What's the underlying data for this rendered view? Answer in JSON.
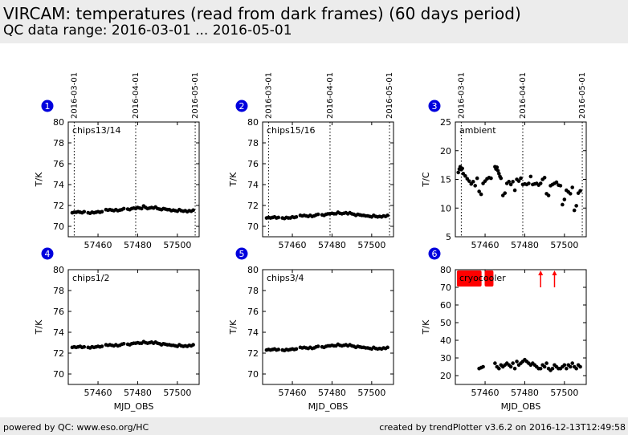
{
  "header": {
    "title": "VIRCAM: temperatures (read from dark frames) (60 days period)",
    "subtitle": "QC data range: 2016-03-01 ... 2016-05-01"
  },
  "footer": {
    "left": "powered by QC: www.eso.org/HC",
    "right": "created by trendPlotter v3.6.2 on 2016-12-13T12:49:58"
  },
  "chart_data": [
    {
      "type": "scatter",
      "panel_number": "1",
      "label": "chips13/14",
      "ylabel": "T/K",
      "xlabel": "",
      "xlim": [
        57445,
        57511
      ],
      "ylim": [
        69,
        80
      ],
      "xticks": [
        57460,
        57480,
        57500
      ],
      "yticks": [
        70,
        72,
        74,
        76,
        78,
        80
      ],
      "date_ticks": [
        {
          "x": 57448,
          "label": "2016-03-01"
        },
        {
          "x": 57479,
          "label": "2016-04-01"
        },
        {
          "x": 57509,
          "label": "2016-05-01"
        }
      ],
      "series": [
        {
          "color": "#000000",
          "x": [
            57447,
            57448,
            57449,
            57450,
            57451,
            57452,
            57453,
            57455,
            57456,
            57457,
            57458,
            57459,
            57460,
            57461,
            57462,
            57464,
            57465,
            57466,
            57467,
            57468,
            57469,
            57470,
            57471,
            57472,
            57473,
            57475,
            57476,
            57477,
            57478,
            57479,
            57480,
            57481,
            57482,
            57483,
            57484,
            57485,
            57486,
            57487,
            57488,
            57489,
            57490,
            57491,
            57492,
            57493,
            57494,
            57495,
            57496,
            57497,
            57498,
            57499,
            57500,
            57501,
            57502,
            57503,
            57504,
            57505,
            57506,
            57507,
            57508
          ],
          "y": [
            71.3,
            71.35,
            71.35,
            71.4,
            71.35,
            71.3,
            71.4,
            71.3,
            71.25,
            71.35,
            71.3,
            71.35,
            71.4,
            71.35,
            71.4,
            71.6,
            71.55,
            71.6,
            71.55,
            71.5,
            71.6,
            71.5,
            71.55,
            71.6,
            71.7,
            71.65,
            71.6,
            71.7,
            71.75,
            71.7,
            71.8,
            71.75,
            71.7,
            71.95,
            71.8,
            71.7,
            71.75,
            71.8,
            71.75,
            71.85,
            71.7,
            71.65,
            71.6,
            71.7,
            71.65,
            71.6,
            71.6,
            71.5,
            71.55,
            71.5,
            71.45,
            71.6,
            71.5,
            71.45,
            71.5,
            71.4,
            71.5,
            71.45,
            71.55
          ]
        }
      ]
    },
    {
      "type": "scatter",
      "panel_number": "2",
      "label": "chips15/16",
      "ylabel": "T/K",
      "xlabel": "",
      "xlim": [
        57445,
        57511
      ],
      "ylim": [
        69,
        80
      ],
      "xticks": [
        57460,
        57480,
        57500
      ],
      "yticks": [
        70,
        72,
        74,
        76,
        78,
        80
      ],
      "date_ticks": [
        {
          "x": 57448,
          "label": "2016-03-01"
        },
        {
          "x": 57479,
          "label": "2016-04-01"
        },
        {
          "x": 57509,
          "label": "2016-05-01"
        }
      ],
      "series": [
        {
          "color": "#000000",
          "x": [
            57447,
            57448,
            57449,
            57450,
            57451,
            57452,
            57453,
            57455,
            57456,
            57457,
            57458,
            57459,
            57460,
            57461,
            57462,
            57464,
            57465,
            57466,
            57467,
            57468,
            57469,
            57470,
            57471,
            57472,
            57473,
            57475,
            57476,
            57477,
            57478,
            57479,
            57480,
            57481,
            57482,
            57483,
            57484,
            57485,
            57486,
            57487,
            57488,
            57489,
            57490,
            57491,
            57492,
            57493,
            57494,
            57495,
            57496,
            57497,
            57498,
            57499,
            57500,
            57501,
            57502,
            57503,
            57504,
            57505,
            57506,
            57507,
            57508
          ],
          "y": [
            70.8,
            70.85,
            70.8,
            70.85,
            70.9,
            70.8,
            70.85,
            70.8,
            70.75,
            70.85,
            70.8,
            70.8,
            70.9,
            70.85,
            70.9,
            71.05,
            71.0,
            71.05,
            71.0,
            70.95,
            71.05,
            70.95,
            71.0,
            71.1,
            71.15,
            71.1,
            71.05,
            71.15,
            71.2,
            71.2,
            71.25,
            71.2,
            71.2,
            71.35,
            71.25,
            71.2,
            71.25,
            71.3,
            71.2,
            71.3,
            71.2,
            71.15,
            71.05,
            71.15,
            71.1,
            71.05,
            71.05,
            71.0,
            71.0,
            70.95,
            70.9,
            71.05,
            70.95,
            70.9,
            70.95,
            70.9,
            71.0,
            70.95,
            71.05
          ]
        }
      ]
    },
    {
      "type": "scatter",
      "panel_number": "3",
      "label": "ambient",
      "ylabel": "T/C",
      "xlabel": "",
      "xlim": [
        57445,
        57511
      ],
      "ylim": [
        5,
        25
      ],
      "xticks": [
        57460,
        57480,
        57500
      ],
      "yticks": [
        5,
        10,
        15,
        20,
        25
      ],
      "date_ticks": [
        {
          "x": 57448,
          "label": "2016-03-01"
        },
        {
          "x": 57479,
          "label": "2016-04-01"
        },
        {
          "x": 57509,
          "label": "2016-05-01"
        }
      ],
      "series": [
        {
          "color": "#000000",
          "x": [
            57446.5,
            57447,
            57447.5,
            57448,
            57448.5,
            57449,
            57450,
            57451,
            57452,
            57453,
            57454,
            57455,
            57456,
            57457,
            57458,
            57459,
            57460,
            57461,
            57462,
            57463,
            57465,
            57465.5,
            57466,
            57466.5,
            57467,
            57467.5,
            57468,
            57469,
            57470,
            57471,
            57472,
            57473,
            57474,
            57475,
            57476,
            57477,
            57478,
            57479,
            57480,
            57481,
            57482,
            57483,
            57484,
            57485,
            57486,
            57487,
            57488,
            57489,
            57490,
            57491,
            57492,
            57493,
            57494,
            57495,
            57496,
            57497,
            57498,
            57499,
            57500,
            57501,
            57502,
            57503,
            57504,
            57505,
            57506,
            57507,
            57508
          ],
          "y": [
            16.2,
            16.8,
            17.2,
            16.7,
            16.9,
            16.0,
            15.6,
            15.1,
            14.7,
            14.2,
            14.6,
            13.9,
            15.2,
            12.9,
            12.4,
            14.3,
            14.7,
            15.1,
            15.3,
            15.2,
            17.2,
            16.8,
            17.1,
            16.5,
            16.0,
            15.5,
            15.2,
            12.2,
            12.6,
            14.3,
            14.6,
            14.1,
            14.6,
            13.1,
            15.0,
            14.7,
            15.2,
            14.1,
            14.2,
            14.1,
            14.3,
            15.5,
            14.1,
            14.2,
            14.3,
            14.0,
            14.3,
            15.0,
            15.3,
            12.5,
            12.2,
            13.9,
            14.1,
            14.3,
            14.5,
            14.0,
            13.9,
            10.6,
            11.5,
            13.1,
            12.8,
            12.5,
            13.6,
            9.6,
            10.4,
            12.6,
            13.0
          ]
        }
      ]
    },
    {
      "type": "scatter",
      "panel_number": "4",
      "label": "chips1/2",
      "ylabel": "T/K",
      "xlabel": "MJD_OBS",
      "xlim": [
        57445,
        57511
      ],
      "ylim": [
        69,
        80
      ],
      "xticks": [
        57460,
        57480,
        57500
      ],
      "yticks": [
        70,
        72,
        74,
        76,
        78,
        80
      ],
      "series": [
        {
          "color": "#000000",
          "x": [
            57447,
            57448,
            57449,
            57450,
            57451,
            57452,
            57453,
            57455,
            57456,
            57457,
            57458,
            57459,
            57460,
            57461,
            57462,
            57464,
            57465,
            57466,
            57467,
            57468,
            57469,
            57470,
            57471,
            57472,
            57473,
            57475,
            57476,
            57477,
            57478,
            57479,
            57480,
            57481,
            57482,
            57483,
            57484,
            57485,
            57486,
            57487,
            57488,
            57489,
            57490,
            57491,
            57492,
            57493,
            57494,
            57495,
            57496,
            57497,
            57498,
            57499,
            57500,
            57501,
            57502,
            57503,
            57504,
            57505,
            57506,
            57507,
            57508
          ],
          "y": [
            72.55,
            72.6,
            72.55,
            72.6,
            72.65,
            72.55,
            72.6,
            72.55,
            72.5,
            72.6,
            72.55,
            72.6,
            72.65,
            72.6,
            72.65,
            72.8,
            72.75,
            72.8,
            72.75,
            72.7,
            72.8,
            72.7,
            72.75,
            72.85,
            72.9,
            72.85,
            72.8,
            72.9,
            72.95,
            72.95,
            73.0,
            72.95,
            72.95,
            73.1,
            73.0,
            72.95,
            73.0,
            73.05,
            72.95,
            73.05,
            72.95,
            72.9,
            72.8,
            72.9,
            72.85,
            72.8,
            72.8,
            72.75,
            72.75,
            72.7,
            72.65,
            72.8,
            72.7,
            72.65,
            72.7,
            72.65,
            72.75,
            72.7,
            72.8
          ]
        }
      ]
    },
    {
      "type": "scatter",
      "panel_number": "5",
      "label": "chips3/4",
      "ylabel": "T/K",
      "xlabel": "MJD_OBS",
      "xlim": [
        57445,
        57511
      ],
      "ylim": [
        69,
        80
      ],
      "xticks": [
        57460,
        57480,
        57500
      ],
      "yticks": [
        70,
        72,
        74,
        76,
        78,
        80
      ],
      "series": [
        {
          "color": "#000000",
          "x": [
            57447,
            57448,
            57449,
            57450,
            57451,
            57452,
            57453,
            57455,
            57456,
            57457,
            57458,
            57459,
            57460,
            57461,
            57462,
            57464,
            57465,
            57466,
            57467,
            57468,
            57469,
            57470,
            57471,
            57472,
            57473,
            57475,
            57476,
            57477,
            57478,
            57479,
            57480,
            57481,
            57482,
            57483,
            57484,
            57485,
            57486,
            57487,
            57488,
            57489,
            57490,
            57491,
            57492,
            57493,
            57494,
            57495,
            57496,
            57497,
            57498,
            57499,
            57500,
            57501,
            57502,
            57503,
            57504,
            57505,
            57506,
            57507,
            57508
          ],
          "y": [
            72.3,
            72.35,
            72.3,
            72.35,
            72.4,
            72.3,
            72.35,
            72.3,
            72.25,
            72.35,
            72.3,
            72.35,
            72.4,
            72.35,
            72.4,
            72.55,
            72.5,
            72.55,
            72.5,
            72.45,
            72.55,
            72.45,
            72.5,
            72.6,
            72.65,
            72.6,
            72.55,
            72.65,
            72.7,
            72.7,
            72.75,
            72.7,
            72.7,
            72.85,
            72.75,
            72.7,
            72.75,
            72.8,
            72.7,
            72.8,
            72.7,
            72.65,
            72.55,
            72.65,
            72.6,
            72.55,
            72.55,
            72.5,
            72.5,
            72.45,
            72.4,
            72.55,
            72.45,
            72.4,
            72.45,
            72.4,
            72.5,
            72.45,
            72.55
          ]
        }
      ]
    },
    {
      "type": "scatter",
      "panel_number": "6",
      "label": "cryocooler",
      "ylabel": "T/K",
      "xlabel": "MJD_OBS",
      "xlim": [
        57445,
        57511
      ],
      "ylim": [
        15,
        80
      ],
      "xticks": [
        57460,
        57480,
        57500
      ],
      "yticks": [
        20,
        30,
        40,
        50,
        60,
        70,
        80
      ],
      "series": [
        {
          "color": "#000000",
          "x": [
            57457,
            57458,
            57459,
            57465,
            57466,
            57467,
            57468,
            57469,
            57470,
            57471,
            57472,
            57473,
            57474,
            57475,
            57476,
            57477,
            57478,
            57479,
            57480,
            57481,
            57482,
            57483,
            57484,
            57485,
            57486,
            57487,
            57488,
            57489,
            57490,
            57491,
            57492,
            57493,
            57494,
            57495,
            57496,
            57497,
            57498,
            57499,
            57500,
            57501,
            57502,
            57503,
            57504,
            57505,
            57506,
            57507,
            57508
          ],
          "y": [
            24,
            24.5,
            25,
            27,
            25,
            24,
            26,
            25,
            26,
            27,
            26,
            25,
            27,
            24,
            28,
            26,
            27,
            28,
            29,
            28,
            27,
            26,
            27,
            26,
            25,
            24,
            24,
            26,
            25,
            27,
            24,
            23,
            24,
            26,
            25,
            24,
            24,
            25,
            26,
            24,
            26,
            25,
            27,
            25,
            24,
            26,
            25
          ]
        },
        {
          "color": "#ff0000",
          "marker": "off-scale",
          "x": [
            57447,
            57448,
            57449,
            57450,
            57451,
            57452,
            57453,
            57454,
            57455,
            57456,
            57457,
            57461,
            57462,
            57463
          ],
          "y": [
            75,
            75,
            75,
            75,
            75,
            75,
            75,
            75,
            75,
            75,
            75,
            75,
            75,
            75
          ]
        },
        {
          "color": "#ff0000",
          "marker": "arrow-up",
          "x": [
            57488,
            57495
          ],
          "y": [
            75,
            75
          ]
        }
      ]
    }
  ]
}
